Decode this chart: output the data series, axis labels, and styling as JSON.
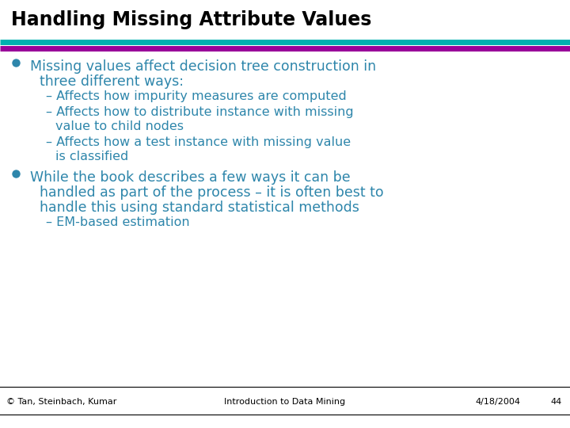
{
  "title": "Handling Missing Attribute Values",
  "title_color": "#000000",
  "title_fontsize": 17,
  "bg_color": "#ffffff",
  "line1_color": "#00B0B0",
  "line2_color": "#990099",
  "bullet_color": "#2E86AB",
  "text_color": "#2E86AB",
  "bullet1_line1": "Missing values affect decision tree construction in",
  "bullet1_line2": "three different ways:",
  "sub1": "– Affects how impurity measures are computed",
  "sub2_line1": "– Affects how to distribute instance with missing",
  "sub2_line2": "   value to child nodes",
  "sub3_line1": "– Affects how a test instance with missing value",
  "sub3_line2": "   is classified",
  "bullet2_line1": "While the book describes a few ways it can be",
  "bullet2_line2": "handled as part of the process – it is often best to",
  "bullet2_line3": "handle this using standard statistical methods",
  "sub4": "– EM-based estimation",
  "footer_left": "© Tan, Steinbach, Kumar",
  "footer_center": "Introduction to Data Mining",
  "footer_right1": "4/18/2004",
  "footer_right2": "44",
  "main_fontsize": 12.5,
  "sub_fontsize": 11.5,
  "footer_fontsize": 8
}
